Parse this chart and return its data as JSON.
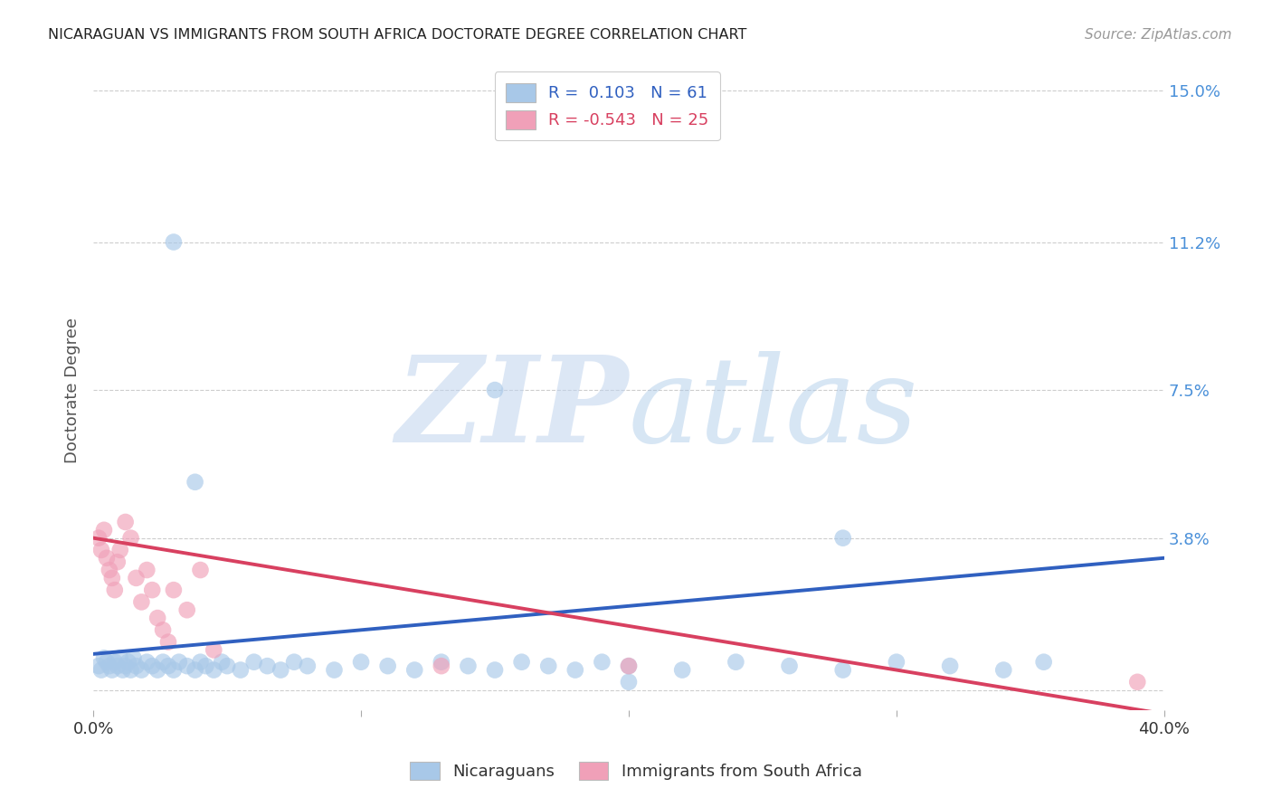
{
  "title": "NICARAGUAN VS IMMIGRANTS FROM SOUTH AFRICA DOCTORATE DEGREE CORRELATION CHART",
  "source": "Source: ZipAtlas.com",
  "ylabel": "Doctorate Degree",
  "xlim": [
    0.0,
    0.4
  ],
  "ylim": [
    -0.005,
    0.155
  ],
  "yticks": [
    0.0,
    0.038,
    0.075,
    0.112,
    0.15
  ],
  "ytick_labels": [
    "",
    "3.8%",
    "7.5%",
    "11.2%",
    "15.0%"
  ],
  "xticks": [
    0.0,
    0.1,
    0.2,
    0.3,
    0.4
  ],
  "xtick_labels": [
    "0.0%",
    "",
    "",
    "",
    "40.0%"
  ],
  "blue_R": 0.103,
  "blue_N": 61,
  "pink_R": -0.543,
  "pink_N": 25,
  "blue_color": "#A8C8E8",
  "pink_color": "#F0A0B8",
  "blue_line_color": "#3060C0",
  "pink_line_color": "#D84060",
  "legend_label_blue": "Nicaraguans",
  "legend_label_pink": "Immigrants from South Africa",
  "watermark": "ZIPatlas",
  "background_color": "#FFFFFF",
  "grid_color": "#C8C8C8",
  "blue_x": [
    0.002,
    0.003,
    0.004,
    0.005,
    0.006,
    0.007,
    0.008,
    0.009,
    0.01,
    0.011,
    0.012,
    0.013,
    0.014,
    0.015,
    0.016,
    0.018,
    0.02,
    0.022,
    0.024,
    0.026,
    0.028,
    0.03,
    0.032,
    0.035,
    0.038,
    0.04,
    0.042,
    0.045,
    0.048,
    0.05,
    0.055,
    0.06,
    0.065,
    0.07,
    0.075,
    0.08,
    0.09,
    0.1,
    0.11,
    0.12,
    0.13,
    0.14,
    0.15,
    0.16,
    0.17,
    0.18,
    0.19,
    0.2,
    0.22,
    0.24,
    0.26,
    0.28,
    0.3,
    0.32,
    0.34,
    0.355,
    0.03,
    0.15,
    0.28,
    0.038,
    0.2
  ],
  "blue_y": [
    0.006,
    0.005,
    0.008,
    0.007,
    0.006,
    0.005,
    0.007,
    0.006,
    0.008,
    0.005,
    0.006,
    0.007,
    0.005,
    0.008,
    0.006,
    0.005,
    0.007,
    0.006,
    0.005,
    0.007,
    0.006,
    0.005,
    0.007,
    0.006,
    0.005,
    0.007,
    0.006,
    0.005,
    0.007,
    0.006,
    0.005,
    0.007,
    0.006,
    0.005,
    0.007,
    0.006,
    0.005,
    0.007,
    0.006,
    0.005,
    0.007,
    0.006,
    0.005,
    0.007,
    0.006,
    0.005,
    0.007,
    0.006,
    0.005,
    0.007,
    0.006,
    0.005,
    0.007,
    0.006,
    0.005,
    0.007,
    0.112,
    0.075,
    0.038,
    0.052,
    0.002
  ],
  "pink_x": [
    0.002,
    0.003,
    0.004,
    0.005,
    0.006,
    0.007,
    0.008,
    0.009,
    0.01,
    0.012,
    0.014,
    0.016,
    0.018,
    0.02,
    0.022,
    0.024,
    0.026,
    0.028,
    0.03,
    0.035,
    0.04,
    0.045,
    0.13,
    0.2,
    0.39
  ],
  "pink_y": [
    0.038,
    0.035,
    0.04,
    0.033,
    0.03,
    0.028,
    0.025,
    0.032,
    0.035,
    0.042,
    0.038,
    0.028,
    0.022,
    0.03,
    0.025,
    0.018,
    0.015,
    0.012,
    0.025,
    0.02,
    0.03,
    0.01,
    0.006,
    0.006,
    0.002
  ]
}
